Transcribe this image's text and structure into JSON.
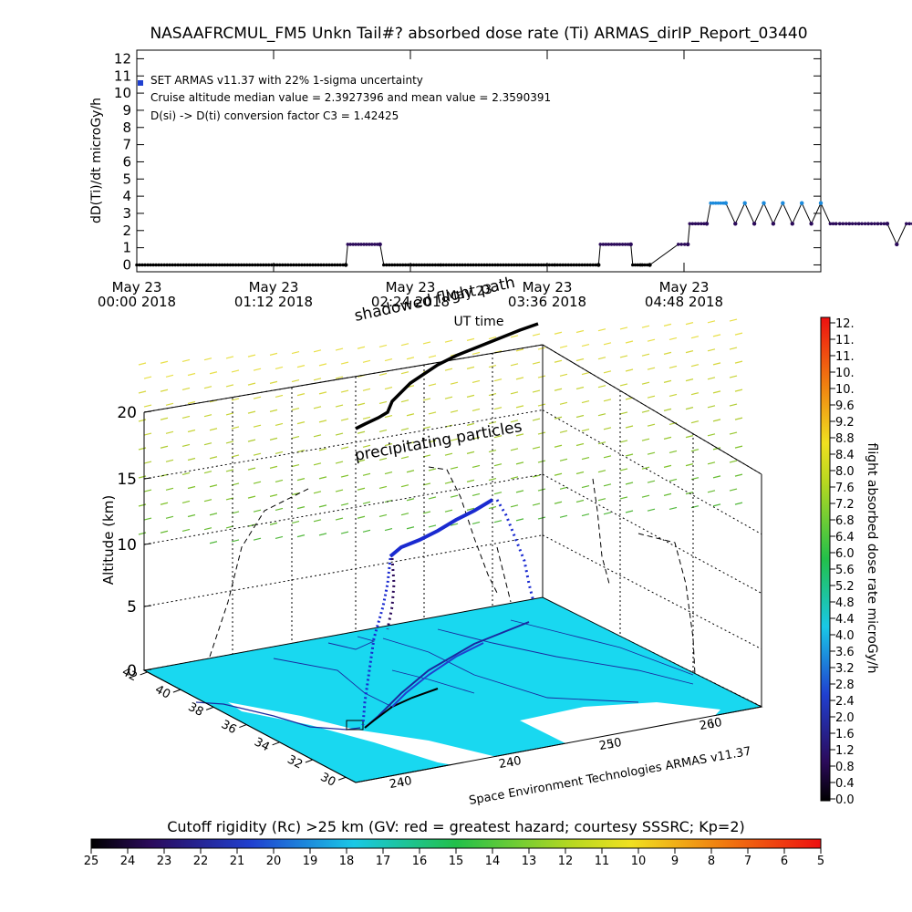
{
  "title": "NASAAFRCMUL_FM5 Unkn Tail#? absorbed dose rate (Ti) ARMAS_dirIP_Report_03440",
  "chart_data": [
    {
      "type": "line",
      "ylabel": "dD(Ti)/dt microGy/h",
      "xlabel": "UT time",
      "ylim": [
        0,
        12
      ],
      "yticks": [
        "0",
        "1",
        "2",
        "3",
        "4",
        "5",
        "6",
        "7",
        "8",
        "9",
        "10",
        "11",
        "12"
      ],
      "xticks": [
        {
          "line1": "May 23",
          "line2": "00:00 2018"
        },
        {
          "line1": "May 23",
          "line2": "01:12 2018"
        },
        {
          "line1": "May 23",
          "line2": "02:24 2018"
        },
        {
          "line1": "May 23",
          "line2": "03:36 2018"
        },
        {
          "line1": "May 23",
          "line2": "04:48 2018"
        }
      ],
      "annotations": [
        "SET ARMAS v11.37 with 22% 1-sigma uncertainty",
        "Cruise altitude median value = 2.3927396 and mean value = 2.3590391",
        "D(si) -> D(ti) conversion factor C3 = 1.42425"
      ],
      "x_minutes": [
        0,
        110,
        111,
        128,
        130,
        160,
        220,
        243,
        244,
        260,
        261,
        265,
        266,
        270,
        285,
        290,
        291,
        300,
        302,
        310,
        315,
        320,
        325,
        330,
        335,
        340,
        345,
        350,
        355,
        360,
        365,
        368,
        370,
        375,
        380,
        385,
        390,
        395,
        400,
        405,
        410,
        415,
        420,
        425,
        430,
        435,
        440,
        445,
        450,
        452,
        455,
        460,
        465,
        470,
        472,
        475,
        480,
        485,
        490,
        495,
        500,
        505,
        510,
        515,
        520,
        523,
        526,
        540,
        545,
        550,
        555,
        560,
        565,
        570,
        600
      ],
      "y_values": [
        0,
        0,
        1.2,
        1.2,
        0,
        0,
        0,
        0,
        1.2,
        1.2,
        0,
        0,
        0,
        0,
        1.2,
        1.2,
        2.4,
        2.4,
        3.6,
        3.6,
        2.4,
        3.6,
        2.4,
        3.6,
        2.4,
        3.6,
        2.4,
        3.6,
        2.4,
        3.6,
        2.4,
        2.4,
        2.4,
        2.4,
        2.4,
        2.4,
        2.4,
        2.4,
        1.2,
        2.4,
        2.4,
        2.4,
        2.4,
        2.4,
        2.4,
        1.2,
        2.4,
        1.2,
        2.4,
        2.4,
        1.2,
        1.2,
        1.2,
        1.2,
        0,
        0,
        0,
        0,
        0,
        0,
        0,
        0,
        0,
        0,
        0,
        2.4,
        2.4,
        2.4,
        2.4,
        0,
        0,
        0,
        0,
        0,
        0
      ]
    },
    {
      "type": "scatter",
      "zlabel": "Altitude (km)",
      "zticks": [
        "0",
        "5",
        "10",
        "15",
        "20"
      ],
      "lat_ticks": [
        "42",
        "40",
        "38",
        "36",
        "34",
        "32",
        "30"
      ],
      "lon_ticks": [
        "240",
        "240",
        "250",
        "260"
      ],
      "footer_label": "Space Environment Technologies ARMAS v11.37",
      "labels": [
        "shadowed flight path",
        "precipitating particles",
        "May 23"
      ],
      "colorbar_label": "flight absorbed dose rate microGy/h",
      "colorbar_ticks": [
        "12.",
        "11.",
        "11.",
        "10.",
        "10.",
        "9.6",
        "9.2",
        "8.8",
        "8.4",
        "8.0",
        "7.6",
        "7.2",
        "6.8",
        "6.4",
        "6.0",
        "5.6",
        "5.2",
        "4.8",
        "4.4",
        "4.0",
        "3.6",
        "3.2",
        "2.8",
        "2.4",
        "2.0",
        "1.6",
        "1.2",
        "0.8",
        "0.4",
        "0.0"
      ]
    }
  ],
  "cutoff": {
    "label": "Cutoff rigidity (Rc) >25 km (GV: red = greatest hazard; courtesy SSSRC; Kp=2)",
    "ticks": [
      "25",
      "24",
      "23",
      "22",
      "21",
      "20",
      "19",
      "18",
      "17",
      "16",
      "15",
      "14",
      "13",
      "12",
      "11",
      "10",
      "9",
      "8",
      "7",
      "6",
      "5"
    ]
  }
}
